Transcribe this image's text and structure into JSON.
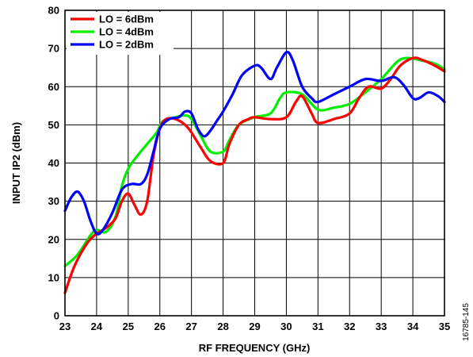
{
  "figure_id": "16785-145",
  "chart_data": {
    "type": "line",
    "xlabel": "RF FREQUENCY (GHz)",
    "ylabel": "INPUT IP2 (dBm)",
    "xlim": [
      23,
      35
    ],
    "ylim": [
      0,
      80
    ],
    "xticks": [
      23,
      24,
      25,
      26,
      27,
      28,
      29,
      30,
      31,
      32,
      33,
      34,
      35
    ],
    "yticks": [
      0,
      10,
      20,
      30,
      40,
      50,
      60,
      70,
      80
    ],
    "grid": true,
    "legend_position": "top-left",
    "series": [
      {
        "name": "LO = 6dBm",
        "color": "#ff0000",
        "points": [
          [
            23.0,
            6
          ],
          [
            23.3,
            13
          ],
          [
            23.7,
            19
          ],
          [
            24.0,
            21.5
          ],
          [
            24.3,
            23
          ],
          [
            24.6,
            25.5
          ],
          [
            24.8,
            30
          ],
          [
            25.0,
            32
          ],
          [
            25.2,
            29
          ],
          [
            25.4,
            26.5
          ],
          [
            25.6,
            30
          ],
          [
            25.8,
            42
          ],
          [
            26.0,
            49
          ],
          [
            26.2,
            51.5
          ],
          [
            26.5,
            51.5
          ],
          [
            26.8,
            50
          ],
          [
            27.0,
            48
          ],
          [
            27.3,
            44
          ],
          [
            27.6,
            40.5
          ],
          [
            28.0,
            40
          ],
          [
            28.2,
            45
          ],
          [
            28.5,
            50
          ],
          [
            28.8,
            51.5
          ],
          [
            29.0,
            52
          ],
          [
            29.5,
            51.5
          ],
          [
            30.0,
            52
          ],
          [
            30.3,
            56
          ],
          [
            30.5,
            57.5
          ],
          [
            30.8,
            53
          ],
          [
            31.0,
            50.5
          ],
          [
            31.5,
            51.5
          ],
          [
            32.0,
            53
          ],
          [
            32.3,
            57
          ],
          [
            32.6,
            60
          ],
          [
            33.0,
            59.5
          ],
          [
            33.3,
            62
          ],
          [
            33.6,
            65.5
          ],
          [
            34.0,
            67.5
          ],
          [
            34.3,
            67
          ],
          [
            34.7,
            65.5
          ],
          [
            35.0,
            64
          ]
        ]
      },
      {
        "name": "LO = 4dBm",
        "color": "#00ee00",
        "points": [
          [
            23.0,
            13
          ],
          [
            23.4,
            16
          ],
          [
            23.8,
            21
          ],
          [
            24.0,
            22.5
          ],
          [
            24.3,
            22
          ],
          [
            24.6,
            26
          ],
          [
            24.8,
            34
          ],
          [
            25.0,
            38.5
          ],
          [
            25.3,
            42
          ],
          [
            25.6,
            45
          ],
          [
            25.9,
            48
          ],
          [
            26.1,
            51
          ],
          [
            26.5,
            52
          ],
          [
            26.8,
            52.5
          ],
          [
            27.0,
            51.5
          ],
          [
            27.3,
            47
          ],
          [
            27.6,
            43
          ],
          [
            28.0,
            43
          ],
          [
            28.2,
            46
          ],
          [
            28.5,
            50
          ],
          [
            29.0,
            52
          ],
          [
            29.5,
            53
          ],
          [
            29.8,
            57
          ],
          [
            30.0,
            58.5
          ],
          [
            30.5,
            58
          ],
          [
            31.0,
            54
          ],
          [
            31.5,
            54.5
          ],
          [
            32.0,
            55.5
          ],
          [
            32.5,
            58.5
          ],
          [
            33.0,
            62
          ],
          [
            33.5,
            66.5
          ],
          [
            33.8,
            67.5
          ],
          [
            34.2,
            67
          ],
          [
            34.7,
            66
          ],
          [
            35.0,
            64.5
          ]
        ]
      },
      {
        "name": "LO = 2dBm",
        "color": "#0000ff",
        "points": [
          [
            23.0,
            27.5
          ],
          [
            23.2,
            31
          ],
          [
            23.4,
            32.5
          ],
          [
            23.6,
            30
          ],
          [
            23.8,
            25
          ],
          [
            24.0,
            21.5
          ],
          [
            24.2,
            22.5
          ],
          [
            24.5,
            27
          ],
          [
            24.8,
            33
          ],
          [
            25.1,
            34.5
          ],
          [
            25.4,
            34.5
          ],
          [
            25.6,
            37
          ],
          [
            25.8,
            43
          ],
          [
            26.0,
            49
          ],
          [
            26.3,
            51.5
          ],
          [
            26.6,
            52
          ],
          [
            26.8,
            53.5
          ],
          [
            27.0,
            53
          ],
          [
            27.2,
            49
          ],
          [
            27.4,
            47
          ],
          [
            27.6,
            48.5
          ],
          [
            27.8,
            51
          ],
          [
            28.0,
            53.5
          ],
          [
            28.3,
            58
          ],
          [
            28.6,
            63
          ],
          [
            29.0,
            65.5
          ],
          [
            29.2,
            65
          ],
          [
            29.5,
            62
          ],
          [
            29.7,
            65
          ],
          [
            30.0,
            69
          ],
          [
            30.2,
            67
          ],
          [
            30.5,
            60
          ],
          [
            30.8,
            57
          ],
          [
            31.0,
            56
          ],
          [
            31.5,
            58
          ],
          [
            32.0,
            60
          ],
          [
            32.5,
            62
          ],
          [
            33.0,
            61.5
          ],
          [
            33.4,
            62.5
          ],
          [
            33.7,
            60.5
          ],
          [
            34.0,
            57
          ],
          [
            34.2,
            57
          ],
          [
            34.5,
            58.5
          ],
          [
            34.8,
            57.5
          ],
          [
            35.0,
            56
          ]
        ]
      }
    ]
  }
}
